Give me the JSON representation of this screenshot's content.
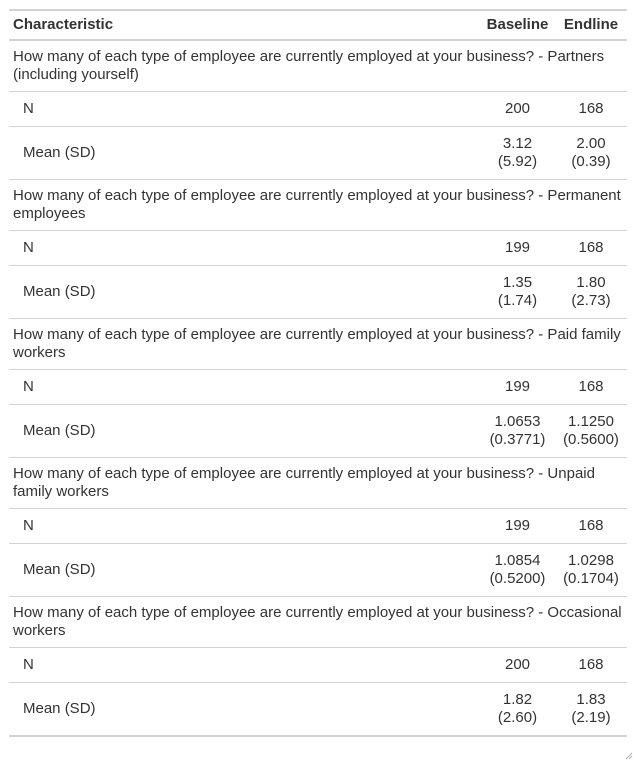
{
  "header": {
    "characteristic": "Characteristic",
    "baseline": "Baseline",
    "endline": "Endline"
  },
  "groups": [
    {
      "label": "How many of each type of employee are currently employed at your business? - Partners (including yourself)",
      "n_label": "N",
      "n_baseline": "200",
      "n_endline": "168",
      "mean_label": "Mean (SD)",
      "mean_baseline": "3.12",
      "sd_baseline": "(5.92)",
      "mean_endline": "2.00",
      "sd_endline": "(0.39)"
    },
    {
      "label": "How many of each type of employee are currently employed at your business? - Permanent employees",
      "n_label": "N",
      "n_baseline": "199",
      "n_endline": "168",
      "mean_label": "Mean (SD)",
      "mean_baseline": "1.35",
      "sd_baseline": "(1.74)",
      "mean_endline": "1.80",
      "sd_endline": "(2.73)"
    },
    {
      "label": "How many of each type of employee are currently employed at your business? - Paid family workers",
      "n_label": "N",
      "n_baseline": "199",
      "n_endline": "168",
      "mean_label": "Mean (SD)",
      "mean_baseline": "1.0653",
      "sd_baseline": "(0.3771)",
      "mean_endline": "1.1250",
      "sd_endline": "(0.5600)"
    },
    {
      "label": "How many of each type of employee are currently employed at your business? - Unpaid family workers",
      "n_label": "N",
      "n_baseline": "199",
      "n_endline": "168",
      "mean_label": "Mean (SD)",
      "mean_baseline": "1.0854",
      "sd_baseline": "(0.5200)",
      "mean_endline": "1.0298",
      "sd_endline": "(0.1704)"
    },
    {
      "label": "How many of each type of employee are currently employed at your business? - Occasional workers",
      "n_label": "N",
      "n_baseline": "200",
      "n_endline": "168",
      "mean_label": "Mean (SD)",
      "mean_baseline": "1.82",
      "sd_baseline": "(2.60)",
      "mean_endline": "1.83",
      "sd_endline": "(2.19)"
    }
  ],
  "icons": {
    "corner": "resize-grip-icon"
  }
}
